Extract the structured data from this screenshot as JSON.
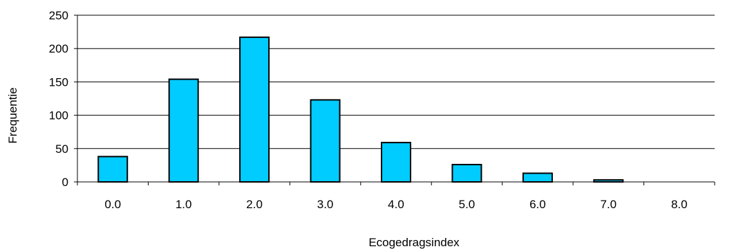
{
  "chart_data": {
    "type": "bar",
    "title": "",
    "xlabel": "Ecogedragsindex",
    "ylabel": "Frequentie",
    "categories": [
      "0.0",
      "1.0",
      "2.0",
      "3.0",
      "4.0",
      "5.0",
      "6.0",
      "7.0",
      "8.0"
    ],
    "values": [
      38,
      154,
      217,
      123,
      59,
      26,
      13,
      3,
      0
    ],
    "ylim": [
      0,
      250
    ],
    "yticks": [
      0,
      50,
      100,
      150,
      200,
      250
    ],
    "grid": true,
    "legend": "none",
    "colors": {
      "bar_fill": "#00ccff",
      "bar_stroke": "#000000",
      "grid": "#000000"
    }
  }
}
